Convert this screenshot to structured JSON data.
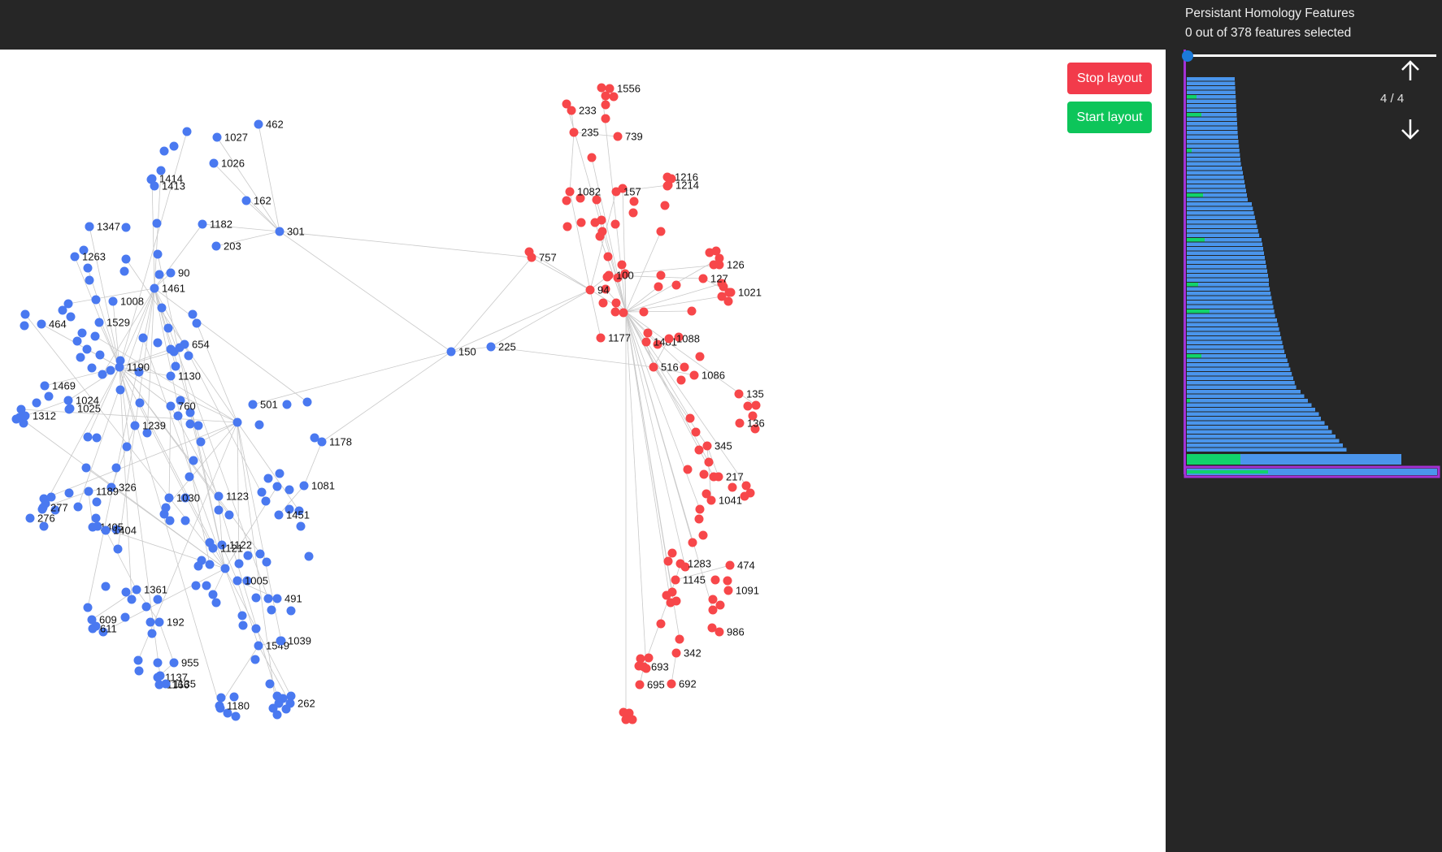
{
  "buttons": {
    "stop_label": "Stop layout",
    "start_label": "Start layout"
  },
  "panel": {
    "title": "Persistant Homology Features",
    "count": "0 out of 378 features selected",
    "pager": "4 / 4",
    "slider_value": 0
  },
  "colors": {
    "cluster_a": "#4a79f0",
    "cluster_b": "#f7474a",
    "edge": "#c9c9c9",
    "bar_blue": "#4a95ec",
    "bar_green": "#11d36b",
    "selection": "#a431d6"
  },
  "icons": {
    "up": "arrow-up-icon",
    "down": "arrow-down-icon"
  },
  "graph": {
    "labels_a": [
      "462",
      "1027",
      "1026",
      "1414",
      "1413",
      "162",
      "1347",
      "1182",
      "203",
      "301",
      "1263",
      "90",
      "1461",
      "1008",
      "464",
      "1529",
      "654",
      "1190",
      "1130",
      "1469",
      "1024",
      "1025",
      "1312",
      "760",
      "501",
      "1239",
      "1178",
      "326",
      "1189",
      "1030",
      "1123",
      "1081",
      "277",
      "276",
      "1405",
      "1404",
      "1451",
      "1122",
      "1121",
      "1005",
      "1361",
      "491",
      "609",
      "611",
      "192",
      "1549",
      "1039",
      "955",
      "1137",
      "1166",
      "1135",
      "1180",
      "262",
      "150",
      "225"
    ],
    "labels_b": [
      "1556",
      "233",
      "235",
      "739",
      "1216",
      "1214",
      "1082",
      "157",
      "757",
      "100",
      "126",
      "127",
      "94",
      "1021",
      "1177",
      "1481",
      "1088",
      "516",
      "1086",
      "135",
      "136",
      "345",
      "217",
      "1041",
      "1283",
      "474",
      "1145",
      "1091",
      "986",
      "342",
      "693",
      "695",
      "692"
    ]
  }
}
